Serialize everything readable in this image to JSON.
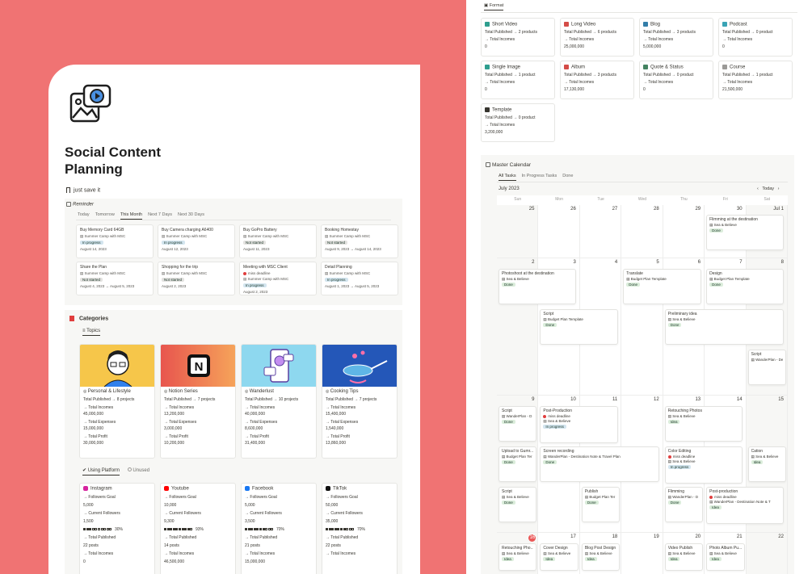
{
  "page": {
    "title_line1": "Social Content",
    "title_line2": "Planning",
    "save_text": "just save it"
  },
  "reminder": {
    "title": "Reminder",
    "tabs": [
      "Today",
      "Tomorrow",
      "This Month",
      "Next 7 Days",
      "Next 30 Days"
    ],
    "cards": [
      {
        "title": "Buy Memory Card 64GB",
        "camp": "Summer Camp with MSC",
        "status": "In progress",
        "date": "August 14, 2023"
      },
      {
        "title": "Buy Camera charging A6400",
        "camp": "Summer Camp with MSC",
        "status": "In progress",
        "date": "August 12, 2023"
      },
      {
        "title": "Buy GoPro Battery",
        "camp": "Summer Camp with MSC",
        "status": "Not started",
        "date": "August 11, 2023"
      },
      {
        "title": "Booking Homestay",
        "camp": "Summer Camp with MSC",
        "status": "Not started",
        "date": "August 9, 2023 → August 14, 2023"
      },
      {
        "title": "Share the Plan",
        "camp": "Summer Camp with MSC",
        "status": "Not started",
        "date": "August 4, 2023 → August 5, 2023"
      },
      {
        "title": "Shopping for the trip",
        "camp": "Summer Camp with MSC",
        "status": "Not started",
        "date": "August 2, 2023"
      },
      {
        "title": "Meeting with MSC Client",
        "camp": "Summer Camp with MSC",
        "status": "In progress",
        "date": "August 2, 2023",
        "extra": "miss deadline"
      },
      {
        "title": "Detail Planning",
        "camp": "Summer Camp with MSC",
        "status": "In progress",
        "date": "August 1, 2023 → August 5, 2023"
      }
    ]
  },
  "categories": {
    "title": "Categories",
    "tab": "Topics",
    "cards": [
      {
        "name": "Personal & Lifestyle",
        "pub": "Total Published → 8 projects",
        "income": "45,000,000",
        "expenses": "15,000,000",
        "profit": "30,000,000"
      },
      {
        "name": "Notion Series",
        "pub": "Total Published → 7 projects",
        "income": "13,200,000",
        "expenses": "3,000,000",
        "profit": "10,200,000"
      },
      {
        "name": "Wanderlust",
        "pub": "Total Published → 10 projects",
        "income": "40,000,000",
        "expenses": "8,600,000",
        "profit": "31,400,000"
      },
      {
        "name": "Cooking Tips",
        "pub": "Total Published → 7 projects",
        "income": "15,400,000",
        "expenses": "1,540,000",
        "profit": "13,860,000"
      }
    ],
    "labels": {
      "income": "→ Total Incomes",
      "expenses": "→ Total Expenses",
      "profit": "→ Total Profit"
    }
  },
  "platform": {
    "tab_active": "Using Platform",
    "tab_inactive": "Unused",
    "labels": {
      "goal": "→ Followers Goal",
      "current": "→ Current Followers",
      "published": "→ Total Published",
      "incomes": "→ Total Incomes"
    },
    "cards": [
      {
        "name": "Instagram",
        "goal": "5,000",
        "current": "1,500",
        "progress_text": "30%",
        "progress": 0.3,
        "published": "22 posts",
        "incomes": "0"
      },
      {
        "name": "Youtube",
        "goal": "10,000",
        "current": "9,300",
        "progress_text": "93%",
        "progress": 0.93,
        "published": "14 posts",
        "incomes": "46,500,000"
      },
      {
        "name": "Facebook",
        "goal": "5,000",
        "current": "3,500",
        "progress_text": "70%",
        "progress": 0.7,
        "published": "21 posts",
        "incomes": "15,000,000"
      },
      {
        "name": "TikTok",
        "goal": "50,000",
        "current": "35,000",
        "progress_text": "70%",
        "progress": 0.7,
        "published": "22 posts",
        "incomes": ""
      }
    ]
  },
  "format": {
    "tab": "Format",
    "pub_label": "Total Published →",
    "income_label": "→ Total Incomes",
    "cards": [
      {
        "name": "Short Video",
        "pub": "2 products",
        "income": "0",
        "color": "#2e9e8e"
      },
      {
        "name": "Long Video",
        "pub": "6 products",
        "income": "25,000,000",
        "color": "#d44c47"
      },
      {
        "name": "Blog",
        "pub": "3 products",
        "income": "5,000,000",
        "color": "#337ea9"
      },
      {
        "name": "Podcast",
        "pub": "0 product",
        "income": "0",
        "color": "#3aa3b5"
      },
      {
        "name": "Single Image",
        "pub": "1 product",
        "income": "0",
        "color": "#2e9e8e"
      },
      {
        "name": "Album",
        "pub": "3 products",
        "income": "17,130,000",
        "color": "#d44c47"
      },
      {
        "name": "Quote & Status",
        "pub": "0 product",
        "income": "0",
        "color": "#448361"
      },
      {
        "name": "Course",
        "pub": "1 product",
        "income": "21,500,000",
        "color": "#9b9a97"
      },
      {
        "name": "Template",
        "pub": "0 product",
        "income": "3,200,000",
        "color": "#37352f"
      }
    ]
  },
  "calendar": {
    "title": "Master Calendar",
    "tabs": [
      "All Tasks",
      "In Progress Tasks",
      "Done"
    ],
    "month": "July 2023",
    "today_btn": "Today",
    "weekdays": [
      "Sun",
      "Mon",
      "Tue",
      "Wed",
      "Thu",
      "Fri",
      "Sat"
    ],
    "week_days": [
      [
        "25",
        "26",
        "27",
        "28",
        "29",
        "30",
        "Jul 1"
      ],
      [
        "2",
        "3",
        "4",
        "5",
        "6",
        "7",
        "8"
      ],
      [
        "9",
        "10",
        "11",
        "12",
        "13",
        "14",
        "15"
      ],
      [
        "16",
        "17",
        "18",
        "19",
        "20",
        "21",
        "22"
      ]
    ],
    "events": [
      {
        "t": "Flimming at the destination",
        "s": "Sea & Believe",
        "tag": "Done"
      },
      {
        "t": "Photoshoot at the destination",
        "s": "Sea & Believe",
        "tag": "Done"
      },
      {
        "t": "Translate",
        "s": "Budget Plan Template",
        "tag": "Done"
      },
      {
        "t": "Design",
        "s": "Budget Plan Template",
        "tag": "Done"
      },
      {
        "t": "Script",
        "s": "Budget Plan Template",
        "tag": "Done"
      },
      {
        "t": "Preliminary idea",
        "s": "Sea & Believe",
        "tag": "Done"
      },
      {
        "t": "Script",
        "s": "WanderPlan - De",
        "tag": ""
      },
      {
        "t": "Script",
        "s": "WanderPlan - D",
        "tag": "Done"
      },
      {
        "t": "Post-Production",
        "m": "miss deadline",
        "s": "Sea & Believe",
        "tag": "In progress"
      },
      {
        "t": "Retouching Photos",
        "s": "Sea & Believe",
        "tag": "Idea"
      },
      {
        "t": "Upload to Gumr...",
        "s": "Budget Plan Ter",
        "tag": "Done"
      },
      {
        "t": "Screen recording",
        "s": "WanderPlan - Destination Note & Travel Plan",
        "tag": "Done"
      },
      {
        "t": "Color Editing",
        "m": "miss deadline",
        "s": "Sea & Believe",
        "tag": "In progress"
      },
      {
        "t": "Cation",
        "s": "Sea & Believe",
        "tag": "Idea"
      },
      {
        "t": "Script",
        "s": "Sea & Believe",
        "tag": "Done"
      },
      {
        "t": "Publish",
        "s": "Budget Plan Ter",
        "tag": "Done"
      },
      {
        "t": "Flimming",
        "s": "WanderPlan - D",
        "tag": "Done"
      },
      {
        "t": "Post-production",
        "m": "miss deadline",
        "s": "WanderPlan - Destination Note & T",
        "tag": "Idea"
      },
      {
        "t": "Retouching Pho...",
        "s": "Sea & Believe",
        "tag": "Idea"
      },
      {
        "t": "Cover Design",
        "s": "Sea & Believe",
        "tag": "Idea"
      },
      {
        "t": "Blog Post Design",
        "s": "Sea & Believe",
        "tag": "Idea"
      },
      {
        "t": "Video Publish",
        "s": "Sea & Believe",
        "tag": "Idea"
      },
      {
        "t": "Photo Album Pu...",
        "s": "Sea & Believe",
        "tag": "Idea"
      }
    ]
  },
  "colors": {
    "background": "#f07373",
    "done": "#dbeddb",
    "progress": "#d3e5ef",
    "notstarted": "#e3e2e0",
    "idea": "#dbeddb",
    "today": "#eb5757"
  },
  "icons": [
    "gallery-video-icon",
    "bookmark-icon",
    "calendar-icon",
    "flag-icon",
    "checkbox-icon",
    "circle-icon",
    "page-icon",
    "chevron-left-icon",
    "chevron-right-icon"
  ]
}
